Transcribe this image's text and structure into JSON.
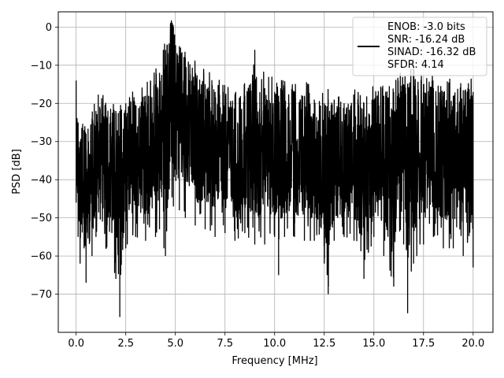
{
  "chart_data": {
    "type": "line",
    "title": "",
    "xlabel": "Frequency [MHz]",
    "ylabel": "PSD [dB]",
    "xlim": [
      -0.9,
      21.0
    ],
    "ylim": [
      -80,
      4
    ],
    "xticks": [
      0.0,
      2.5,
      5.0,
      7.5,
      10.0,
      12.5,
      15.0,
      17.5,
      20.0
    ],
    "xtick_labels": [
      "0.0",
      "2.5",
      "5.0",
      "7.5",
      "10.0",
      "12.5",
      "15.0",
      "17.5",
      "20.0"
    ],
    "yticks": [
      0,
      -10,
      -20,
      -30,
      -40,
      -50,
      -60,
      -70
    ],
    "ytick_labels": [
      "0",
      "−10",
      "−20",
      "−30",
      "−40",
      "−50",
      "−60",
      "−70"
    ],
    "grid": true,
    "legend_position": "top-right",
    "line_color": "#000000",
    "series": [
      {
        "legend_lines": [
          "ENOB: -3.0 bits",
          "SNR: -16.24 dB",
          "SINAD: -16.32 dB",
          "SFDR: 4.14"
        ],
        "x_range": [
          0.0,
          20.0
        ],
        "envelope_points": [
          {
            "x": 0.0,
            "upper": -14,
            "lower": -46
          },
          {
            "x": 0.1,
            "upper": -25,
            "lower": -55
          },
          {
            "x": 0.2,
            "upper": -30,
            "lower": -62
          },
          {
            "x": 0.4,
            "upper": -27,
            "lower": -58
          },
          {
            "x": 0.5,
            "upper": -28,
            "lower": -67
          },
          {
            "x": 0.8,
            "upper": -24,
            "lower": -60
          },
          {
            "x": 1.0,
            "upper": -22,
            "lower": -55
          },
          {
            "x": 1.5,
            "upper": -21,
            "lower": -58
          },
          {
            "x": 2.0,
            "upper": -22,
            "lower": -66
          },
          {
            "x": 2.2,
            "upper": -22,
            "lower": -76
          },
          {
            "x": 2.5,
            "upper": -20,
            "lower": -58
          },
          {
            "x": 3.0,
            "upper": -21,
            "lower": -55
          },
          {
            "x": 3.5,
            "upper": -18,
            "lower": -56
          },
          {
            "x": 4.0,
            "upper": -15,
            "lower": -55
          },
          {
            "x": 4.2,
            "upper": -12,
            "lower": -53
          },
          {
            "x": 4.5,
            "upper": -6,
            "lower": -60
          },
          {
            "x": 4.9,
            "upper": 0,
            "lower": -47
          },
          {
            "x": 5.2,
            "upper": -5,
            "lower": -48
          },
          {
            "x": 5.5,
            "upper": -8,
            "lower": -50
          },
          {
            "x": 6.0,
            "upper": -12,
            "lower": -52
          },
          {
            "x": 6.5,
            "upper": -15,
            "lower": -53
          },
          {
            "x": 7.0,
            "upper": -17,
            "lower": -55
          },
          {
            "x": 7.5,
            "upper": -18,
            "lower": -54
          },
          {
            "x": 8.0,
            "upper": -19,
            "lower": -56
          },
          {
            "x": 8.5,
            "upper": -18,
            "lower": -54
          },
          {
            "x": 9.0,
            "upper": -9,
            "lower": -57
          },
          {
            "x": 9.5,
            "upper": -16,
            "lower": -57
          },
          {
            "x": 10.0,
            "upper": -17,
            "lower": -55
          },
          {
            "x": 10.2,
            "upper": -18,
            "lower": -65
          },
          {
            "x": 10.5,
            "upper": -16,
            "lower": -55
          },
          {
            "x": 11.0,
            "upper": -17,
            "lower": -55
          },
          {
            "x": 11.5,
            "upper": -18,
            "lower": -56
          },
          {
            "x": 12.0,
            "upper": -19,
            "lower": -56
          },
          {
            "x": 12.5,
            "upper": -20,
            "lower": -62
          },
          {
            "x": 12.7,
            "upper": -19,
            "lower": -70
          },
          {
            "x": 13.0,
            "upper": -19,
            "lower": -56
          },
          {
            "x": 13.5,
            "upper": -20,
            "lower": -55
          },
          {
            "x": 14.0,
            "upper": -19,
            "lower": -56
          },
          {
            "x": 14.5,
            "upper": -20,
            "lower": -66
          },
          {
            "x": 15.0,
            "upper": -19,
            "lower": -55
          },
          {
            "x": 15.5,
            "upper": -18,
            "lower": -60
          },
          {
            "x": 16.0,
            "upper": -17,
            "lower": -68
          },
          {
            "x": 16.5,
            "upper": -15,
            "lower": -57
          },
          {
            "x": 16.7,
            "upper": -15,
            "lower": -75
          },
          {
            "x": 17.0,
            "upper": -12,
            "lower": -62
          },
          {
            "x": 17.5,
            "upper": -15,
            "lower": -57
          },
          {
            "x": 18.0,
            "upper": -16,
            "lower": -55
          },
          {
            "x": 18.5,
            "upper": -17,
            "lower": -58
          },
          {
            "x": 19.0,
            "upper": -18,
            "lower": -58
          },
          {
            "x": 19.5,
            "upper": -19,
            "lower": -60
          },
          {
            "x": 20.0,
            "upper": -17,
            "lower": -63
          }
        ]
      }
    ]
  }
}
